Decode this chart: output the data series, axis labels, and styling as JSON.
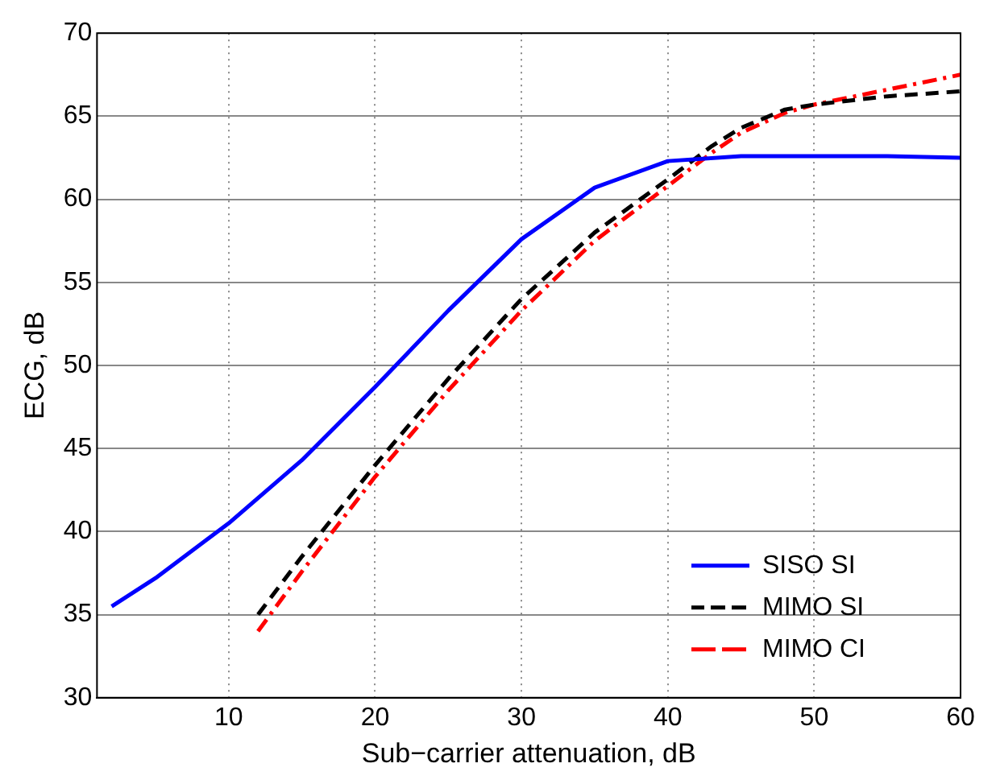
{
  "chart_data": {
    "type": "line",
    "xlabel": "Sub−carrier attenuation, dB",
    "ylabel": "ECG, dB",
    "xlim": [
      1,
      60
    ],
    "xticks": [
      10,
      20,
      30,
      40,
      50,
      60
    ],
    "ylim": [
      30,
      70
    ],
    "yticks": [
      30,
      35,
      40,
      45,
      50,
      55,
      60,
      65,
      70
    ],
    "grid": true,
    "legend": "bottom right",
    "marker": "none",
    "series": [
      {
        "name": "SISO SI",
        "color": "#0000ff",
        "line_style": "solid",
        "x": [
          2,
          5,
          10,
          15,
          20,
          25,
          30,
          35,
          40,
          45,
          50,
          55,
          60
        ],
        "values": [
          35.5,
          37.2,
          40.5,
          44.3,
          48.7,
          53.3,
          57.6,
          60.7,
          62.3,
          62.6,
          62.6,
          62.6,
          62.5
        ]
      },
      {
        "name": "MIMO SI",
        "color": "#000000",
        "line_style": "dashed",
        "x": [
          12,
          15,
          20,
          25,
          30,
          35,
          40,
          43,
          45,
          48,
          50,
          55,
          60
        ],
        "values": [
          35,
          38.5,
          44,
          49.2,
          54,
          58,
          61.2,
          63.2,
          64.3,
          65.4,
          65.7,
          66.2,
          66.5
        ]
      },
      {
        "name": "MIMO CI",
        "color": "#ff0000",
        "line_style": "dashdot",
        "x": [
          12,
          15,
          20,
          25,
          30,
          35,
          40,
          43,
          45,
          48,
          50,
          55,
          60
        ],
        "values": [
          34,
          37.6,
          43.3,
          48.5,
          53.3,
          57.5,
          60.8,
          62.8,
          64,
          65.2,
          65.7,
          66.6,
          67.5
        ]
      }
    ]
  }
}
